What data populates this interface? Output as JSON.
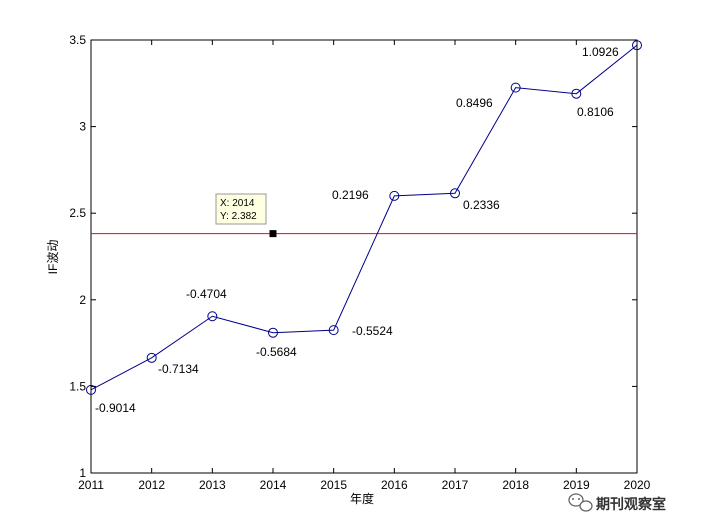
{
  "chart_data": {
    "type": "line",
    "x": [
      2011,
      2012,
      2013,
      2014,
      2015,
      2016,
      2017,
      2018,
      2019,
      2020
    ],
    "y": [
      1.48,
      1.665,
      1.905,
      1.81,
      1.825,
      2.6,
      2.615,
      3.225,
      3.19,
      3.47
    ],
    "point_labels": [
      "-0.9014",
      "-0.7134",
      "-0.4704",
      "-0.5684",
      "-0.5524",
      "0.2196",
      "0.2336",
      "0.8496",
      "0.8106",
      "1.0926"
    ],
    "xlim": [
      2011,
      2020
    ],
    "ylim": [
      1,
      3.5
    ],
    "x_ticks": [
      "2011",
      "2012",
      "2013",
      "2014",
      "2015",
      "2016",
      "2017",
      "2018",
      "2019",
      "2020"
    ],
    "y_ticks": [
      "1",
      "1.5",
      "2",
      "2.5",
      "3",
      "3.5"
    ],
    "xlabel": "年度",
    "ylabel": "IF波动",
    "line_color": "#00008b",
    "reference_line": {
      "y": 2.382,
      "color": "#ff0000"
    },
    "datatip": {
      "x": 2014,
      "y": 2.382,
      "line1": "X: 2014",
      "line2": "Y: 2.382"
    },
    "grid": false,
    "legend": "none"
  },
  "watermark": {
    "text": "期刊观察室",
    "icon": "wechat-icon"
  }
}
